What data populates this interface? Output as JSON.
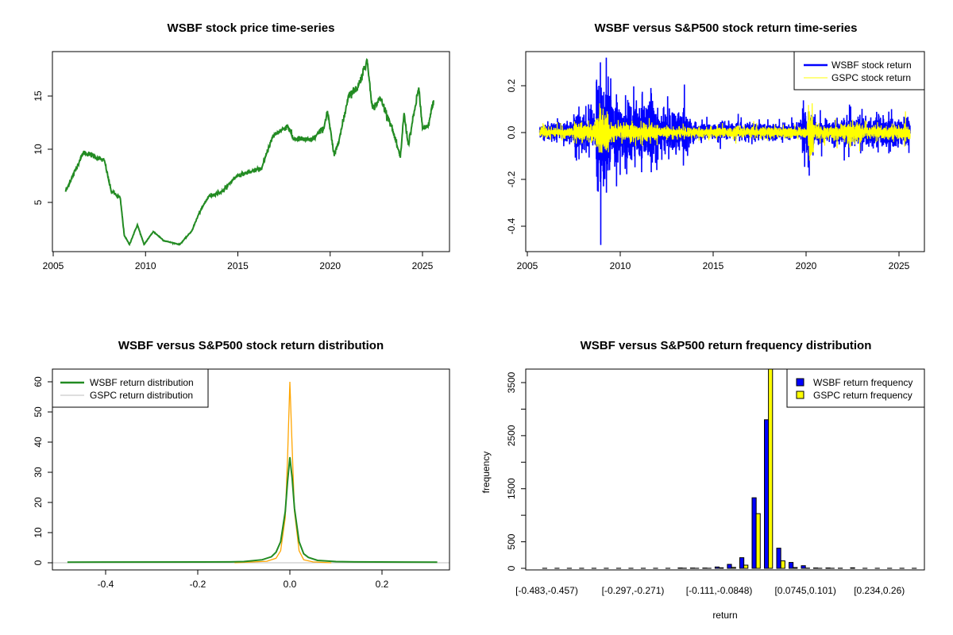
{
  "colors": {
    "wsbf_price": "#228B22",
    "wsbf_return": "#0000FF",
    "gspc_return": "#FFFF00",
    "gspc_density": "#FFA500",
    "zero_line": "#BEBEBE"
  },
  "chart_data": [
    {
      "type": "line",
      "title": "WSBF stock price time-series",
      "xlabel": "",
      "ylabel": "",
      "xlim": [
        2005,
        2026.5
      ],
      "ylim": [
        0.37,
        19.2
      ],
      "x_ticks": [
        "2005",
        "2010",
        "2015",
        "2020",
        "2025"
      ],
      "y_ticks": [
        "5",
        "10",
        "15"
      ],
      "series": [
        {
          "name": "WSBF price",
          "points": [
            [
              2005.67,
              6.0
            ],
            [
              2006.63,
              9.7
            ],
            [
              2007.2,
              9.35
            ],
            [
              2007.78,
              8.9
            ],
            [
              2008.13,
              6.1
            ],
            [
              2008.63,
              5.4
            ],
            [
              2008.85,
              1.9
            ],
            [
              2009.13,
              1.04
            ],
            [
              2009.56,
              2.9
            ],
            [
              2009.92,
              1.04
            ],
            [
              2010.42,
              2.26
            ],
            [
              2011.0,
              1.4
            ],
            [
              2011.85,
              1.04
            ],
            [
              2012.5,
              2.3
            ],
            [
              2012.93,
              4.1
            ],
            [
              2013.43,
              5.6
            ],
            [
              2014.14,
              6.0
            ],
            [
              2014.93,
              7.5
            ],
            [
              2016.3,
              8.2
            ],
            [
              2016.65,
              10.1
            ],
            [
              2016.93,
              11.3
            ],
            [
              2017.7,
              12.2
            ],
            [
              2018.0,
              11.0
            ],
            [
              2019.0,
              10.85
            ],
            [
              2019.65,
              12.0
            ],
            [
              2019.85,
              13.6
            ],
            [
              2020.22,
              9.35
            ],
            [
              2020.58,
              11.6
            ],
            [
              2021.0,
              15.1
            ],
            [
              2021.5,
              15.8
            ],
            [
              2022.0,
              18.4
            ],
            [
              2022.3,
              13.8
            ],
            [
              2022.72,
              14.8
            ],
            [
              2023.3,
              12.3
            ],
            [
              2023.8,
              9.2
            ],
            [
              2024.0,
              13.4
            ],
            [
              2024.23,
              10.4
            ],
            [
              2024.8,
              15.8
            ],
            [
              2025.0,
              11.9
            ],
            [
              2025.3,
              12.1
            ],
            [
              2025.6,
              14.6
            ]
          ]
        }
      ]
    },
    {
      "type": "line",
      "title": "WSBF versus S&P500 stock return time-series",
      "xlim": [
        2005,
        2026.5
      ],
      "ylim": [
        -0.508,
        0.346
      ],
      "x_ticks": [
        "2005",
        "2010",
        "2015",
        "2020",
        "2025"
      ],
      "y_ticks": [
        "-0.4",
        "-0.2",
        "0.0",
        "0.2"
      ],
      "legend": {
        "position": "top-right",
        "entries": [
          "WSBF stock return",
          "GSPC stock return"
        ]
      },
      "series": [
        {
          "name": "WSBF stock return",
          "volatility_regimes": [
            [
              2005.67,
              2007.5,
              0.012
            ],
            [
              2007.5,
              2008.7,
              0.025
            ],
            [
              2008.7,
              2009.5,
              0.065
            ],
            [
              2009.5,
              2012.0,
              0.038
            ],
            [
              2012.0,
              2013.8,
              0.028
            ],
            [
              2013.8,
              2019.8,
              0.011
            ],
            [
              2019.8,
              2020.5,
              0.03
            ],
            [
              2020.5,
              2022.0,
              0.014
            ],
            [
              2022.0,
              2025.6,
              0.02
            ]
          ],
          "spikes": [
            [
              2008.95,
              -0.48
            ],
            [
              2008.93,
              0.3
            ],
            [
              2009.25,
              0.32
            ],
            [
              2008.85,
              0.2
            ],
            [
              2009.8,
              -0.23
            ],
            [
              2009.1,
              -0.23
            ],
            [
              2011.65,
              0.19
            ],
            [
              2011.9,
              -0.13
            ],
            [
              2013.45,
              0.205
            ],
            [
              2022.3,
              -0.105
            ],
            [
              2024.6,
              0.1
            ]
          ]
        },
        {
          "name": "GSPC stock return",
          "volatility_regimes": [
            [
              2005.67,
              2007.5,
              0.006
            ],
            [
              2007.5,
              2008.7,
              0.012
            ],
            [
              2008.7,
              2009.4,
              0.03
            ],
            [
              2009.4,
              2012.0,
              0.012
            ],
            [
              2012.0,
              2020.1,
              0.007
            ],
            [
              2020.1,
              2020.4,
              0.035
            ],
            [
              2020.4,
              2022.0,
              0.009
            ],
            [
              2022.0,
              2023.0,
              0.013
            ],
            [
              2023.0,
              2025.6,
              0.009
            ]
          ],
          "spikes": [
            [
              2008.9,
              0.11
            ],
            [
              2020.2,
              -0.12
            ],
            [
              2020.18,
              0.09
            ],
            [
              2025.3,
              -0.06
            ],
            [
              2025.35,
              0.09
            ]
          ]
        }
      ]
    },
    {
      "type": "line",
      "title": "WSBF versus S&P500 stock return distribution",
      "xlim": [
        -0.51,
        0.35
      ],
      "ylim": [
        -2.4,
        64.2
      ],
      "x_ticks": [
        "-0.4",
        "-0.2",
        "0.0",
        "0.2"
      ],
      "y_ticks": [
        "0",
        "10",
        "20",
        "30",
        "40",
        "50",
        "60"
      ],
      "legend": {
        "position": "top-left",
        "entries": [
          "WSBF return distribution",
          "GSPC return distribution"
        ]
      },
      "series": [
        {
          "name": "WSBF return distribution",
          "points": [
            [
              -0.483,
              0.2
            ],
            [
              -0.13,
              0.3
            ],
            [
              -0.1,
              0.4
            ],
            [
              -0.06,
              1.0
            ],
            [
              -0.04,
              2.0
            ],
            [
              -0.03,
              3.5
            ],
            [
              -0.02,
              7
            ],
            [
              -0.01,
              17
            ],
            [
              -0.005,
              27
            ],
            [
              0,
              35
            ],
            [
              0.005,
              28
            ],
            [
              0.01,
              18
            ],
            [
              0.02,
              7
            ],
            [
              0.03,
              3
            ],
            [
              0.04,
              1.8
            ],
            [
              0.06,
              0.8
            ],
            [
              0.1,
              0.4
            ],
            [
              0.14,
              0.3
            ],
            [
              0.32,
              0.2
            ]
          ]
        },
        {
          "name": "GSPC return distribution",
          "points": [
            [
              -0.12,
              0
            ],
            [
              -0.05,
              0.5
            ],
            [
              -0.03,
              1.5
            ],
            [
              -0.02,
              4
            ],
            [
              -0.01,
              15
            ],
            [
              -0.005,
              35
            ],
            [
              0,
              60
            ],
            [
              0.005,
              38
            ],
            [
              0.01,
              17
            ],
            [
              0.02,
              4
            ],
            [
              0.03,
              1
            ],
            [
              0.05,
              0.3
            ],
            [
              0.09,
              0
            ]
          ]
        }
      ]
    },
    {
      "type": "bar",
      "title": "WSBF versus S&P500 return frequency distribution",
      "xlabel": "return",
      "ylabel": "frequency",
      "ylim": [
        0,
        3750
      ],
      "y_ticks": [
        "0",
        "500",
        "1500",
        "2500",
        "3500"
      ],
      "category_labels": [
        {
          "bin": 0,
          "label": "[-0.483,-0.457)"
        },
        {
          "bin": 7,
          "label": "[-0.297,-0.271)"
        },
        {
          "bin": 14,
          "label": "[-0.111,-0.0848)"
        },
        {
          "bin": 21,
          "label": "[0.0745,0.101)"
        },
        {
          "bin": 27,
          "label": "[0.234,0.26)"
        }
      ],
      "legend": {
        "position": "top-right",
        "entries": [
          "WSBF return frequency",
          "GSPC return frequency"
        ]
      },
      "series": [
        {
          "name": "WSBF return frequency",
          "values": [
            2,
            2,
            2,
            2,
            2,
            2,
            2,
            2,
            2,
            2,
            2,
            8,
            6,
            6,
            25,
            75,
            200,
            1330,
            2800,
            380,
            110,
            50,
            8,
            8,
            3,
            10,
            2,
            2,
            2,
            2,
            2
          ]
        },
        {
          "name": "GSPC return frequency",
          "values": [
            0,
            0,
            0,
            0,
            0,
            0,
            0,
            0,
            0,
            0,
            0,
            3,
            2,
            2,
            10,
            18,
            60,
            1030,
            3900,
            140,
            15,
            4,
            1,
            1,
            0,
            0,
            0,
            0,
            0,
            0,
            0
          ]
        }
      ]
    }
  ]
}
